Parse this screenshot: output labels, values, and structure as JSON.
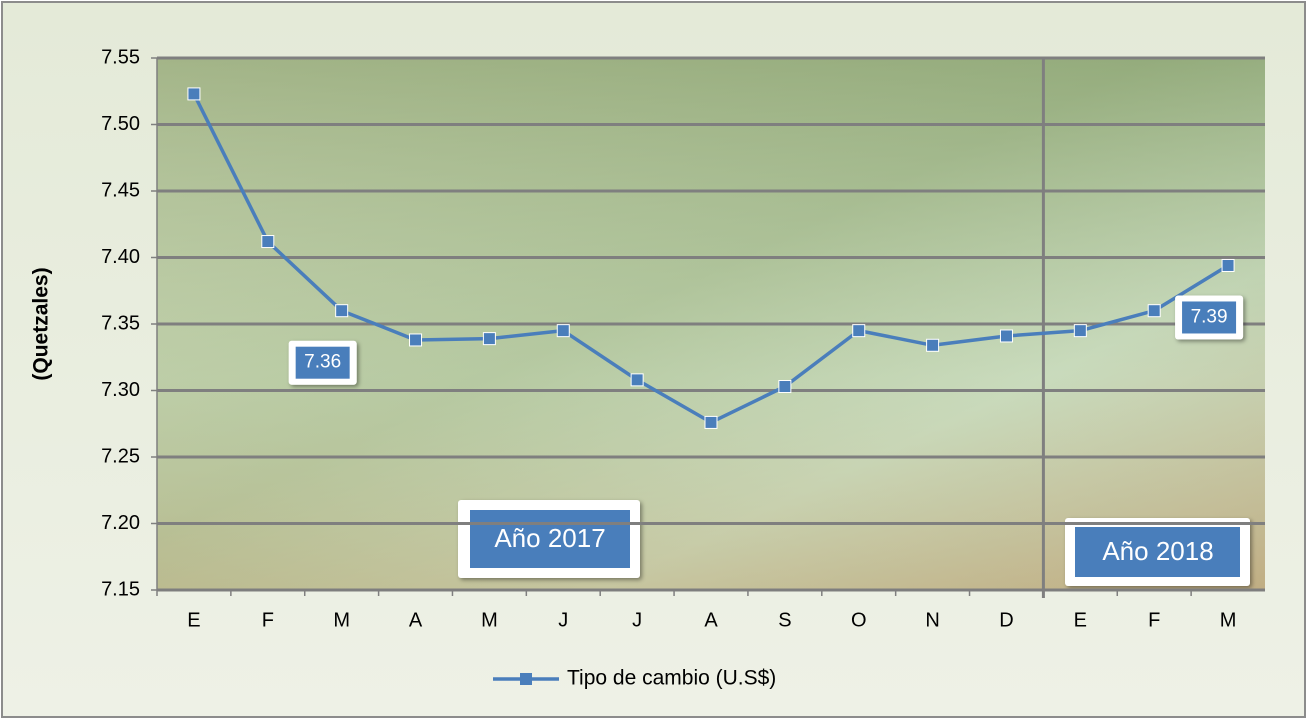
{
  "chart_data": {
    "type": "line",
    "y_axis_label": "(Quetzales)",
    "categories": [
      "E",
      "F",
      "M",
      "A",
      "M",
      "J",
      "J",
      "A",
      "S",
      "O",
      "N",
      "D",
      "E",
      "F",
      "M"
    ],
    "series": [
      {
        "name": "Tipo de cambio (U.S$)",
        "color": "#4a7ebb",
        "values": [
          7.523,
          7.412,
          7.36,
          7.338,
          7.339,
          7.345,
          7.308,
          7.276,
          7.303,
          7.345,
          7.334,
          7.341,
          7.345,
          7.36,
          7.394
        ],
        "value_labels": [
          null,
          null,
          "7.36",
          null,
          null,
          null,
          null,
          null,
          null,
          null,
          null,
          null,
          null,
          null,
          "7.39"
        ]
      }
    ],
    "annotations": [
      "Año 2017",
      "Año 2018"
    ],
    "ylim": [
      7.15,
      7.55
    ],
    "yticks": [
      7.15,
      {
        "value": 7.2,
        "label": "7.20"
      },
      7.25,
      {
        "value": 7.3,
        "label": "7.30"
      },
      7.35,
      {
        "value": 7.4,
        "label": "7.40"
      },
      7.45,
      {
        "value": 7.5,
        "label": "7.50"
      },
      7.55
    ],
    "grid": true,
    "legend": "bottom"
  }
}
